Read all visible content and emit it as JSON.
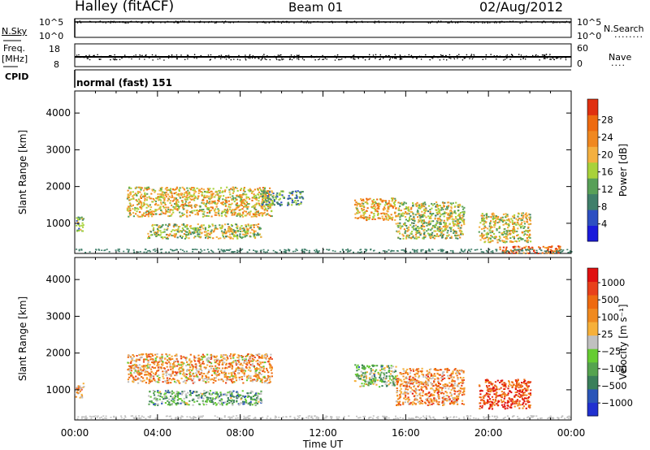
{
  "header": {
    "station": "Halley (fitACF)",
    "beam": "Beam 01",
    "date": "02/Aug/2012"
  },
  "top_panels": {
    "nsky_label": "N.Sky",
    "nsky_ticks_left": [
      "10^5",
      "10^0"
    ],
    "nsearch_label": "N.Search",
    "nsearch_ticks_right": [
      "10^5",
      "10^0"
    ],
    "freq_label": "Freq.",
    "freq_unit": "[MHz]",
    "freq_ticks_left": [
      "18",
      "8"
    ],
    "nave_label": "Nave",
    "nave_ticks_right": [
      "60",
      "0"
    ],
    "cpid_label": "CPID",
    "cpid_value": "normal (fast) 151"
  },
  "chart_data": [
    {
      "type": "heatmap",
      "panel": "power",
      "ylabel": "Slant Range [km]",
      "xlabel": "",
      "ylim": [
        180,
        4600
      ],
      "yticks": [
        "1000",
        "2000",
        "3000",
        "4000"
      ],
      "xlim_hours": [
        0,
        24
      ],
      "colorbar_label": "Power [dB]",
      "colorbar_ticks": [
        "4",
        "8",
        "12",
        "16",
        "20",
        "24",
        "28"
      ],
      "colorbar_colors": [
        "#1a1adb",
        "#2d4fc2",
        "#3f7f6a",
        "#58a058",
        "#a8d23a",
        "#f4b040",
        "#f08820",
        "#ee6a10",
        "#e03010"
      ],
      "echo_regions": [
        {
          "t0": 0.0,
          "t1": 0.4,
          "r0": 800,
          "r1": 1200,
          "level": 0.4
        },
        {
          "t0": 2.5,
          "t1": 9.5,
          "r0": 1200,
          "r1": 2000,
          "level": 0.6
        },
        {
          "t0": 3.5,
          "t1": 9.0,
          "r0": 600,
          "r1": 1000,
          "level": 0.5
        },
        {
          "t0": 9.0,
          "t1": 11.0,
          "r0": 1500,
          "r1": 1900,
          "level": 0.35
        },
        {
          "t0": 13.5,
          "t1": 15.5,
          "r0": 1100,
          "r1": 1700,
          "level": 0.65
        },
        {
          "t0": 15.5,
          "t1": 18.8,
          "r0": 600,
          "r1": 1600,
          "level": 0.5
        },
        {
          "t0": 19.5,
          "t1": 22.0,
          "r0": 500,
          "r1": 1300,
          "level": 0.55
        },
        {
          "t0": 20.5,
          "t1": 23.5,
          "r0": 200,
          "r1": 400,
          "level": 0.85
        }
      ]
    },
    {
      "type": "heatmap",
      "panel": "velocity",
      "ylabel": "Slant Range [km]",
      "xlabel": "Time UT",
      "ylim": [
        180,
        4600
      ],
      "yticks": [
        "1000",
        "2000",
        "3000",
        "4000"
      ],
      "xticks": [
        "00:00",
        "04:00",
        "08:00",
        "12:00",
        "16:00",
        "20:00",
        "00:00"
      ],
      "xlim_hours": [
        0,
        24
      ],
      "colorbar_label": "Velocity [m s⁻¹]",
      "colorbar_ticks": [
        "1000",
        "500",
        "100",
        "25",
        "−25",
        "−100",
        "−500",
        "−1000"
      ],
      "colorbar_colors": [
        "#2030d0",
        "#2a55b8",
        "#3a7f5a",
        "#55a34f",
        "#66cc33",
        "#c0c0c0",
        "#f6b03a",
        "#f08a20",
        "#ee6a10",
        "#e8401a",
        "#e01010"
      ],
      "echo_regions": [
        {
          "t0": 0.0,
          "t1": 0.4,
          "r0": 800,
          "r1": 1200,
          "level": 0.7
        },
        {
          "t0": 2.5,
          "t1": 9.5,
          "r0": 1200,
          "r1": 2000,
          "level": 0.65
        },
        {
          "t0": 3.5,
          "t1": 9.0,
          "r0": 600,
          "r1": 1000,
          "level": 0.35
        },
        {
          "t0": 13.5,
          "t1": 15.5,
          "r0": 1100,
          "r1": 1700,
          "level": 0.4
        },
        {
          "t0": 15.5,
          "t1": 18.8,
          "r0": 600,
          "r1": 1600,
          "level": 0.7
        },
        {
          "t0": 19.5,
          "t1": 22.0,
          "r0": 500,
          "r1": 1300,
          "level": 0.85
        }
      ]
    }
  ]
}
